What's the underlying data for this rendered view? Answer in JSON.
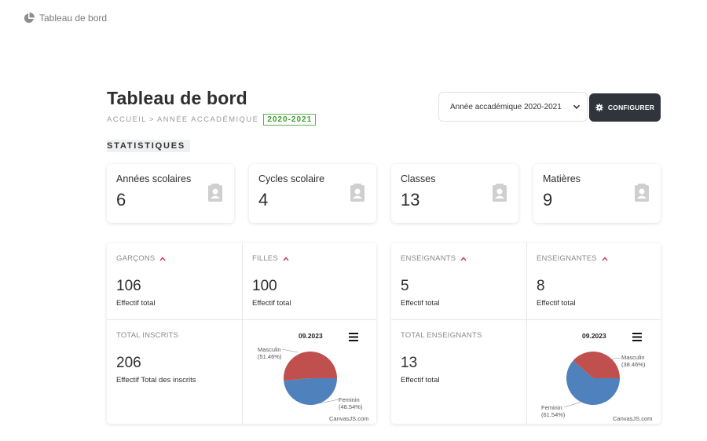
{
  "topbar": {
    "title": "Tableau de bord",
    "icon": "pie-chart-icon"
  },
  "header": {
    "title": "Tableau de bord",
    "breadcrumb": {
      "home": "ACCUEIL",
      "sep": ">",
      "section": "ANNÉE ACCADÉMIQUE",
      "year": "2020-2021"
    }
  },
  "controls": {
    "year_select": {
      "value": "Année accadémique 2020-2021"
    },
    "configure_label": "CONFIGURER"
  },
  "section_label": "STATISTIQUES",
  "stats": [
    {
      "label": "Années scolaires",
      "value": "6",
      "icon": "contact-icon"
    },
    {
      "label": "Cycles scolaire",
      "value": "4",
      "icon": "contact-icon"
    },
    {
      "label": "Classes",
      "value": "13",
      "icon": "contact-icon"
    },
    {
      "label": "Matières",
      "value": "9",
      "icon": "contact-icon"
    }
  ],
  "students": {
    "boys": {
      "label": "GARÇONS",
      "value": "106",
      "sub": "Effectif total"
    },
    "girls": {
      "label": "FILLES",
      "value": "100",
      "sub": "Effectif total"
    },
    "total": {
      "label": "TOTAL INSCRITS",
      "value": "206",
      "sub": "Effectif Total des inscrits"
    },
    "chart": {
      "title": "09.2023",
      "credit": "CanvasJS.com",
      "slices": [
        {
          "label": "Masculin",
          "pct": "(51.46%)",
          "value": 51.46,
          "color": "#c0504e"
        },
        {
          "label": "Feminin",
          "pct": "(48.54%)",
          "value": 48.54,
          "color": "#4f81bc"
        }
      ]
    }
  },
  "teachers": {
    "male": {
      "label": "ENSEIGNANTS",
      "value": "5",
      "sub": "Effectif total"
    },
    "female": {
      "label": "ENSEIGNANTES",
      "value": "8",
      "sub": "Effectif total"
    },
    "total": {
      "label": "TOTAL ENSEIGNANTS",
      "value": "13",
      "sub": "Effectif total"
    },
    "chart": {
      "title": "09.2023",
      "credit": "CanvasJS.com",
      "slices": [
        {
          "label": "Masculin",
          "pct": "(38.46%)",
          "value": 38.46,
          "color": "#c0504e"
        },
        {
          "label": "Feminin",
          "pct": "(61.54%)",
          "value": 61.54,
          "color": "#4f81bc"
        }
      ]
    }
  },
  "colors": {
    "accent_up": "#d9344f",
    "badge": "#57b646",
    "button": "#2f353b"
  }
}
